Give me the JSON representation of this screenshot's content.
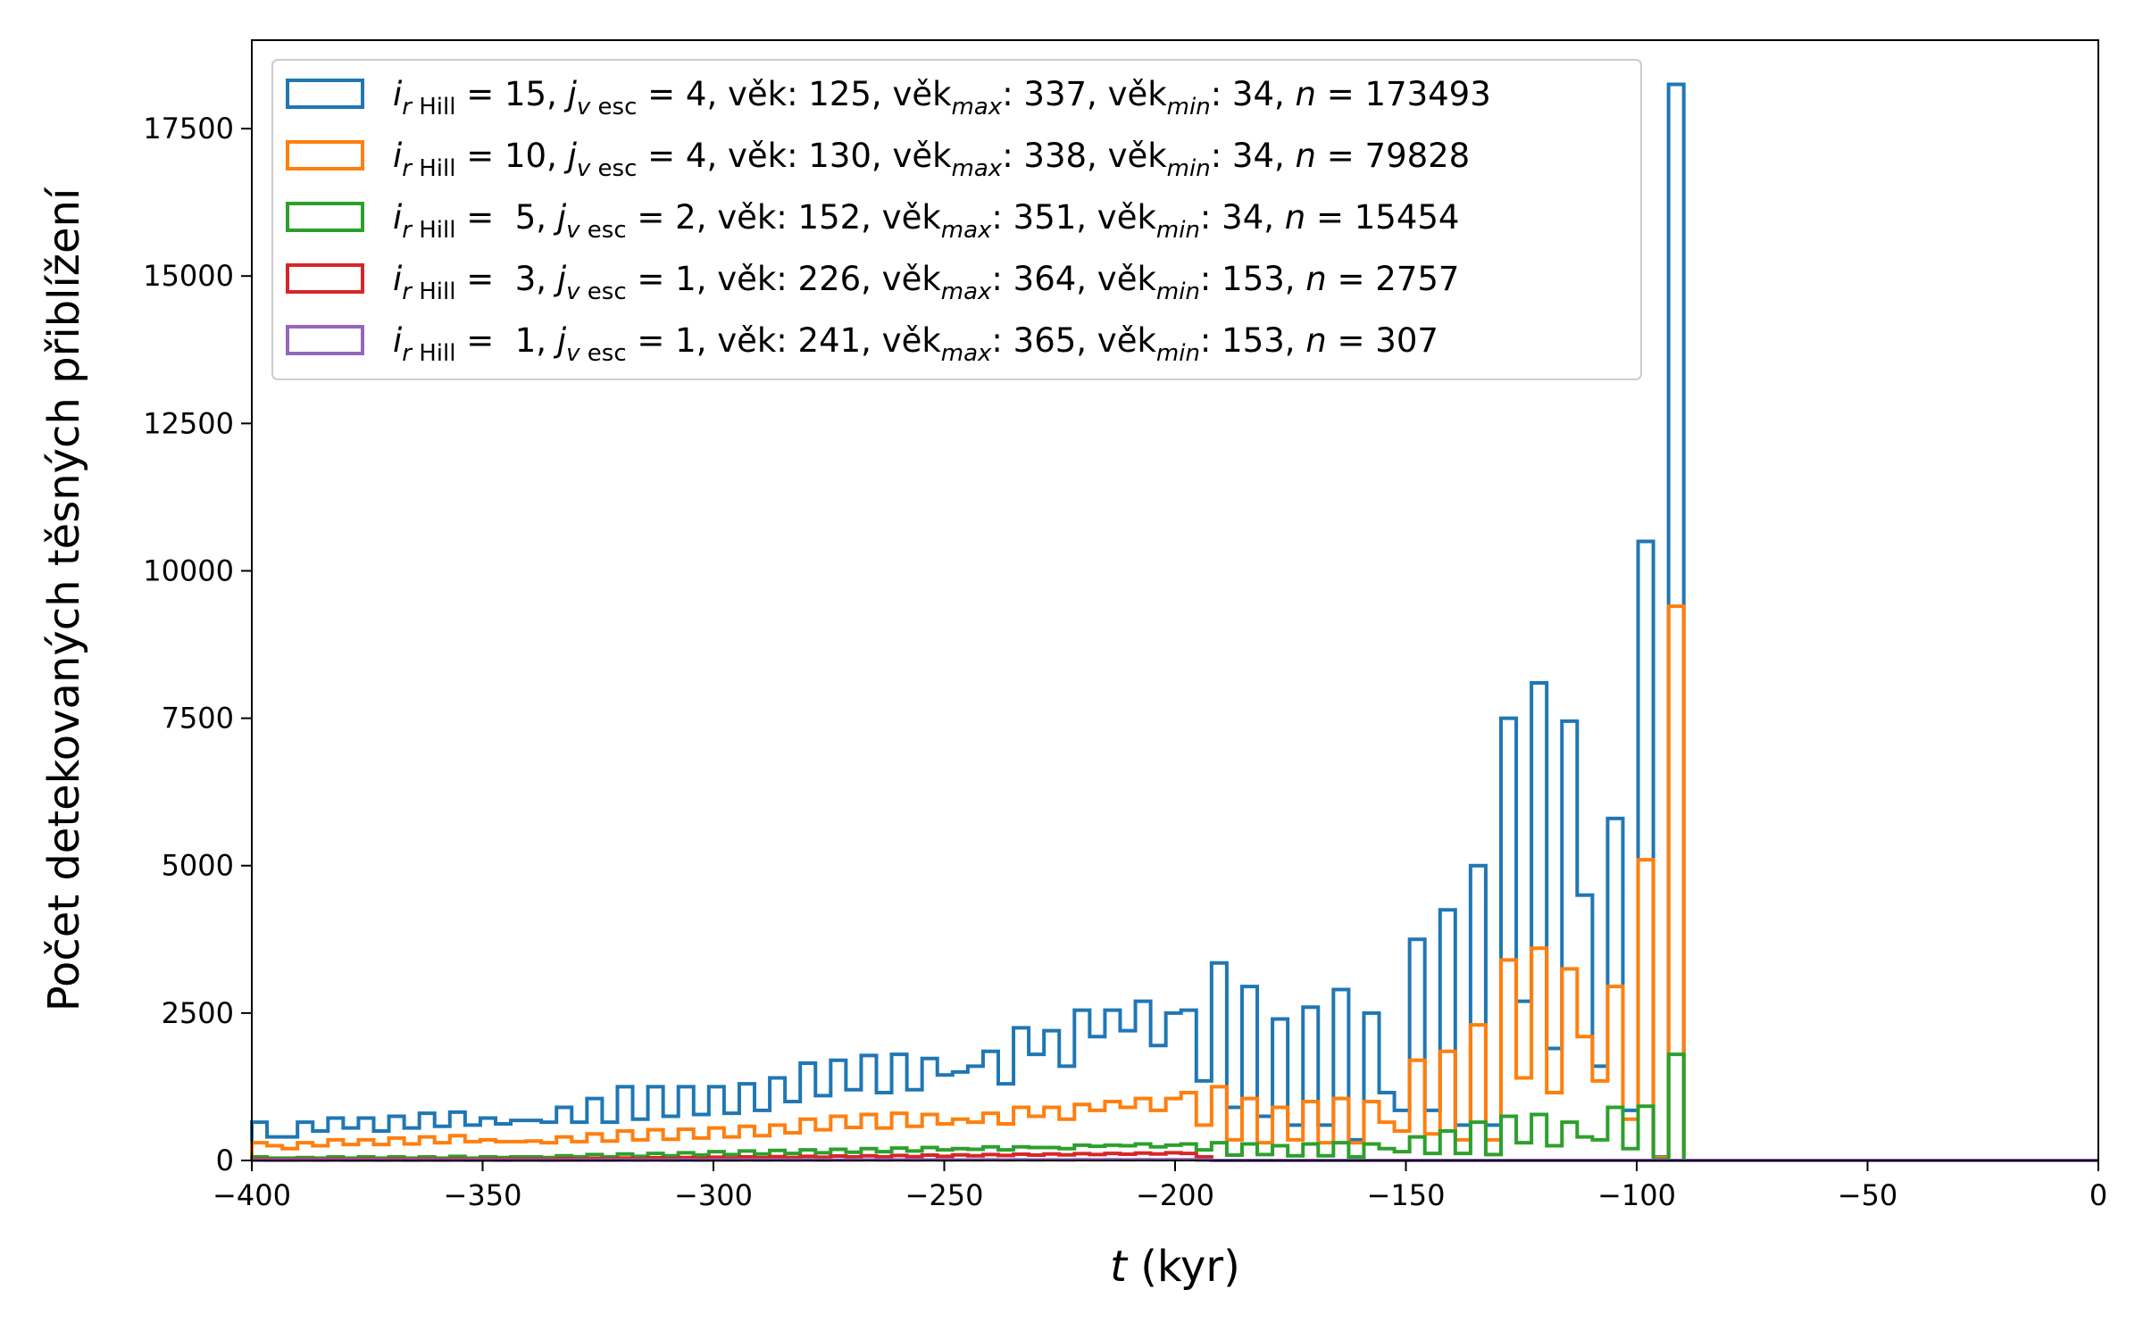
{
  "chart_data": {
    "type": "histogram-step",
    "xlabel_var": "t",
    "xlabel_unit": " (kyr)",
    "ylabel": "Počet detekovaných těsných přiblížení",
    "xlim": [
      -400,
      0
    ],
    "ylim": [
      0,
      19000
    ],
    "xticks": [
      -400,
      -350,
      -300,
      -250,
      -200,
      -150,
      -100,
      -50,
      0
    ],
    "yticks": [
      0,
      2500,
      5000,
      7500,
      10000,
      12500,
      15000,
      17500
    ],
    "bin_start": -400,
    "bin_width": 3.3,
    "legend_placement": "upper-left",
    "grid": false,
    "series": [
      {
        "color": "#1f77b4",
        "legend": {
          "i": "15",
          "j": "4",
          "vek": "125",
          "vek_max": "337",
          "vek_min": "34",
          "n": "173493"
        },
        "values": [
          650,
          400,
          400,
          650,
          500,
          720,
          550,
          720,
          500,
          750,
          550,
          800,
          580,
          820,
          600,
          720,
          620,
          680,
          680,
          650,
          900,
          650,
          1050,
          650,
          1250,
          700,
          1250,
          750,
          1250,
          780,
          1250,
          800,
          1300,
          850,
          1400,
          1000,
          1650,
          1100,
          1700,
          1200,
          1780,
          1150,
          1800,
          1200,
          1730,
          1450,
          1500,
          1600,
          1850,
          1300,
          2250,
          1800,
          2200,
          1600,
          2550,
          2100,
          2550,
          2200,
          2700,
          1950,
          2500,
          2550,
          1350,
          3350,
          900,
          2950,
          750,
          2400,
          600,
          2600,
          600,
          2900,
          350,
          2500,
          1150,
          850,
          3750,
          850,
          4250,
          600,
          5000,
          600,
          7500,
          2700,
          8100,
          1900,
          7450,
          4500,
          1600,
          5800,
          850,
          10500,
          60,
          18250,
          0,
          0,
          0,
          0,
          0,
          0,
          0,
          0,
          0,
          0,
          0,
          0,
          0,
          0,
          0,
          0,
          0,
          0,
          0,
          0,
          0,
          0,
          0,
          0,
          0,
          0,
          0
        ]
      },
      {
        "color": "#ff7f0e",
        "legend": {
          "i": "10",
          "j": "4",
          "vek": "130",
          "vek_max": "338",
          "vek_min": "34",
          "n": "79828"
        },
        "values": [
          300,
          250,
          200,
          300,
          250,
          350,
          270,
          350,
          270,
          380,
          280,
          400,
          300,
          420,
          320,
          350,
          320,
          320,
          330,
          300,
          400,
          320,
          450,
          330,
          500,
          350,
          520,
          360,
          530,
          380,
          550,
          400,
          580,
          420,
          600,
          470,
          700,
          520,
          750,
          560,
          780,
          550,
          800,
          580,
          780,
          620,
          700,
          650,
          800,
          620,
          900,
          750,
          900,
          700,
          950,
          850,
          1000,
          900,
          1050,
          850,
          1050,
          1150,
          600,
          1250,
          350,
          1050,
          300,
          900,
          350,
          1000,
          300,
          1050,
          300,
          1000,
          650,
          500,
          1700,
          450,
          1850,
          350,
          2300,
          350,
          3400,
          1400,
          3600,
          1150,
          3250,
          2100,
          1350,
          2950,
          700,
          5100,
          50,
          9400,
          0,
          0,
          0,
          0,
          0,
          0,
          0,
          0,
          0,
          0,
          0,
          0,
          0,
          0,
          0,
          0,
          0,
          0,
          0,
          0,
          0,
          0,
          0,
          0,
          0,
          0,
          0
        ]
      },
      {
        "color": "#2ca02c",
        "legend": {
          "i": " 5",
          "j": "2",
          "vek": "152",
          "vek_max": "351",
          "vek_min": "34",
          "n": "15454"
        },
        "values": [
          60,
          40,
          40,
          50,
          40,
          60,
          40,
          60,
          40,
          60,
          40,
          60,
          40,
          70,
          40,
          60,
          50,
          60,
          60,
          50,
          80,
          60,
          100,
          60,
          110,
          70,
          120,
          80,
          130,
          90,
          150,
          100,
          160,
          110,
          170,
          120,
          180,
          130,
          190,
          140,
          200,
          150,
          210,
          160,
          220,
          180,
          200,
          190,
          230,
          180,
          230,
          220,
          220,
          200,
          260,
          240,
          260,
          250,
          280,
          230,
          260,
          280,
          180,
          300,
          90,
          280,
          100,
          250,
          80,
          280,
          80,
          300,
          60,
          280,
          200,
          150,
          400,
          120,
          500,
          120,
          650,
          100,
          750,
          300,
          780,
          250,
          650,
          400,
          350,
          900,
          200,
          920,
          20,
          1800,
          0,
          0,
          0,
          0,
          0,
          0,
          0,
          0,
          0,
          0,
          0,
          0,
          0,
          0,
          0,
          0,
          0,
          0,
          0,
          0,
          0,
          0,
          0,
          0,
          0,
          0,
          0
        ]
      },
      {
        "color": "#d62728",
        "legend": {
          "i": " 3",
          "j": "1",
          "vek": "226",
          "vek_max": "364",
          "vek_min": "153",
          "n": "2757"
        },
        "values": [
          20,
          15,
          15,
          20,
          15,
          20,
          15,
          20,
          15,
          25,
          15,
          25,
          15,
          25,
          15,
          25,
          20,
          25,
          25,
          20,
          30,
          25,
          35,
          25,
          40,
          25,
          45,
          30,
          50,
          35,
          55,
          40,
          60,
          45,
          65,
          50,
          70,
          55,
          75,
          60,
          80,
          60,
          85,
          65,
          90,
          70,
          95,
          80,
          100,
          85,
          105,
          90,
          110,
          95,
          115,
          100,
          120,
          105,
          125,
          110,
          130,
          120,
          60,
          0,
          0,
          0,
          0,
          0,
          0,
          0,
          0,
          0,
          0,
          0,
          0,
          0,
          0,
          0,
          0,
          0,
          0,
          0,
          0,
          0,
          0,
          0,
          0,
          0,
          0,
          0,
          0,
          0,
          0,
          0,
          0,
          0,
          0,
          0,
          0,
          0,
          0,
          0,
          0,
          0,
          0,
          0,
          0,
          0,
          0,
          0,
          0,
          0,
          0,
          0,
          0,
          0,
          0,
          0,
          0,
          0,
          0
        ]
      },
      {
        "color": "#9467bd",
        "legend": {
          "i": " 1",
          "j": "1",
          "vek": "241",
          "vek_max": "365",
          "vek_min": "153",
          "n": "307"
        },
        "values": [
          3,
          2,
          2,
          3,
          2,
          3,
          2,
          3,
          2,
          3,
          2,
          3,
          2,
          3,
          2,
          3,
          2,
          3,
          3,
          2,
          4,
          3,
          4,
          3,
          5,
          3,
          5,
          4,
          6,
          4,
          6,
          5,
          7,
          5,
          7,
          6,
          8,
          6,
          8,
          7,
          9,
          7,
          9,
          8,
          10,
          8,
          10,
          9,
          11,
          9,
          12,
          10,
          12,
          10,
          13,
          11,
          13,
          12,
          14,
          12,
          14,
          13,
          8,
          0,
          0,
          0,
          0,
          0,
          0,
          0,
          0,
          0,
          0,
          0,
          0,
          0,
          0,
          0,
          0,
          0,
          0,
          0,
          0,
          0,
          0,
          0,
          0,
          0,
          0,
          0,
          0,
          0,
          0,
          0,
          0,
          0,
          0,
          0,
          0,
          0,
          0,
          0,
          0,
          0,
          0,
          0,
          0,
          0,
          0,
          0,
          0,
          0,
          0,
          0,
          0,
          0,
          0,
          0,
          0,
          0,
          0
        ]
      }
    ]
  }
}
